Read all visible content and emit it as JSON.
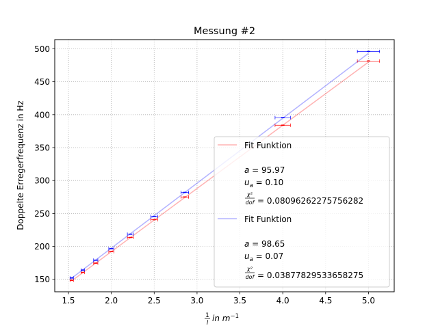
{
  "chart_data": {
    "type": "scatter",
    "title": "Messung #2",
    "ylabel": "Doppelte Erregerfrequenz in Hz",
    "xlabel": {
      "frac_num": "1",
      "frac_den": "l",
      "text": " in m",
      "sup": "−1"
    },
    "xlim": [
      1.34,
      5.3
    ],
    "ylim": [
      131,
      514
    ],
    "xticks": [
      1.5,
      2.0,
      2.5,
      3.0,
      3.5,
      4.0,
      4.5,
      5.0
    ],
    "xtick_labels": [
      "1.5",
      "2.0",
      "2.5",
      "3.0",
      "3.5",
      "4.0",
      "4.5",
      "5.0"
    ],
    "yticks": [
      150,
      200,
      250,
      300,
      350,
      400,
      450,
      500
    ],
    "ytick_labels": [
      "150",
      "200",
      "250",
      "300",
      "350",
      "400",
      "450",
      "500"
    ],
    "grid": true,
    "legend_placement": "lower-right",
    "series": [
      {
        "color": "#ff0000",
        "x": [
          1.538,
          1.667,
          1.818,
          2.0,
          2.222,
          2.5,
          2.857,
          4.0,
          5.0
        ],
        "y": [
          148.5,
          160.5,
          174.5,
          192.0,
          213.5,
          240.5,
          275.0,
          384.0,
          481.5
        ],
        "xerr": [
          0.02,
          0.02,
          0.025,
          0.03,
          0.035,
          0.04,
          0.045,
          0.09,
          0.13
        ],
        "fit": {
          "slope": 95.97,
          "x": [
            1.538,
            5.0
          ]
        },
        "legend": {
          "label": "Fit Funktion",
          "a_name": "a",
          "a_value": "95.97",
          "u_name": "u",
          "u_sub": "a",
          "u_value": "0.10",
          "chi_num": "χ²",
          "chi_den": "dof",
          "chi_value": "0.08096262275756282"
        }
      },
      {
        "color": "#0000ff",
        "x": [
          1.538,
          1.667,
          1.818,
          2.0,
          2.222,
          2.5,
          2.857,
          4.0,
          5.0
        ],
        "y": [
          152.0,
          164.0,
          179.0,
          196.5,
          218.5,
          245.5,
          282.0,
          395.5,
          496.0
        ],
        "xerr": [
          0.02,
          0.02,
          0.025,
          0.03,
          0.035,
          0.04,
          0.045,
          0.09,
          0.13
        ],
        "fit": {
          "slope": 98.65,
          "x": [
            1.538,
            5.0
          ]
        },
        "legend": {
          "label": "Fit Funktion",
          "a_name": "a",
          "a_value": "98.65",
          "u_name": "u",
          "u_sub": "a",
          "u_value": "0.07",
          "chi_num": "χ²",
          "chi_den": "dof",
          "chi_value": "0.03877829533658275"
        }
      }
    ]
  }
}
